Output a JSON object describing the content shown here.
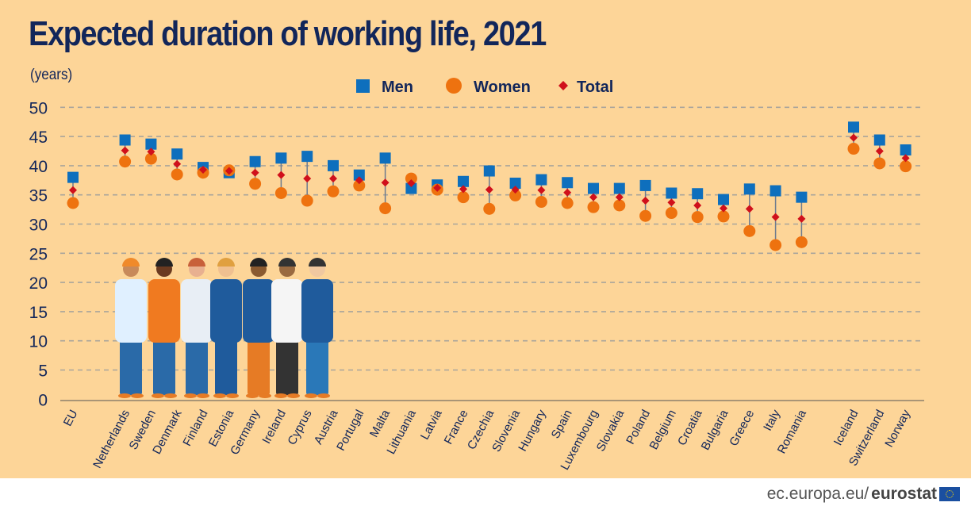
{
  "chart_data": {
    "type": "scatter",
    "title": "Expected duration of working life, 2021",
    "ylabel": "(years)",
    "ylim": [
      0,
      50
    ],
    "yticks": [
      0,
      5,
      10,
      15,
      20,
      25,
      30,
      35,
      40,
      45,
      50
    ],
    "grid": true,
    "legend_position": "top",
    "categories": [
      "EU",
      "Netherlands",
      "Sweden",
      "Denmark",
      "Finland",
      "Estonia",
      "Germany",
      "Ireland",
      "Cyprus",
      "Austria",
      "Portugal",
      "Malta",
      "Lithuania",
      "Latvia",
      "France",
      "Czechia",
      "Slovenia",
      "Hungary",
      "Spain",
      "Luxembourg",
      "Slovakia",
      "Poland",
      "Belgium",
      "Croatia",
      "Bulgaria",
      "Greece",
      "Italy",
      "Romania",
      "Iceland",
      "Switzerland",
      "Norway"
    ],
    "series": [
      {
        "name": "Men",
        "marker": "square",
        "color": "#0E6FBD",
        "values": [
          38.0,
          44.4,
          43.7,
          42.0,
          39.7,
          38.8,
          40.7,
          41.3,
          41.6,
          40.0,
          38.4,
          41.3,
          36.1,
          36.7,
          37.3,
          39.1,
          37.0,
          37.6,
          37.1,
          36.1,
          36.1,
          36.6,
          35.3,
          35.2,
          34.2,
          36.0,
          35.7,
          34.6,
          46.6,
          44.4,
          42.7
        ]
      },
      {
        "name": "Women",
        "marker": "circle",
        "color": "#EE720F",
        "values": [
          33.6,
          40.7,
          41.2,
          38.5,
          38.8,
          39.2,
          36.9,
          35.3,
          34.0,
          35.6,
          36.6,
          32.7,
          37.8,
          35.9,
          34.6,
          32.6,
          34.9,
          33.8,
          33.6,
          32.9,
          33.2,
          31.4,
          31.9,
          31.2,
          31.3,
          28.8,
          26.4,
          26.9,
          42.9,
          40.4,
          39.9
        ]
      },
      {
        "name": "Total",
        "marker": "diamond",
        "color": "#D0101B",
        "values": [
          35.8,
          42.6,
          42.4,
          40.3,
          39.3,
          39.1,
          38.8,
          38.4,
          37.8,
          37.8,
          37.5,
          37.1,
          37.0,
          36.2,
          36.0,
          35.9,
          35.9,
          35.8,
          35.4,
          34.6,
          34.6,
          34.0,
          33.7,
          33.2,
          32.7,
          32.6,
          31.2,
          30.9,
          44.8,
          42.5,
          41.3
        ]
      }
    ]
  },
  "footer": {
    "source_prefix": "ec.europa.eu/",
    "source_brand": "eurostat"
  },
  "colors": {
    "background": "#FDD598",
    "title": "#12265a",
    "gridline": "#A9A59B"
  }
}
